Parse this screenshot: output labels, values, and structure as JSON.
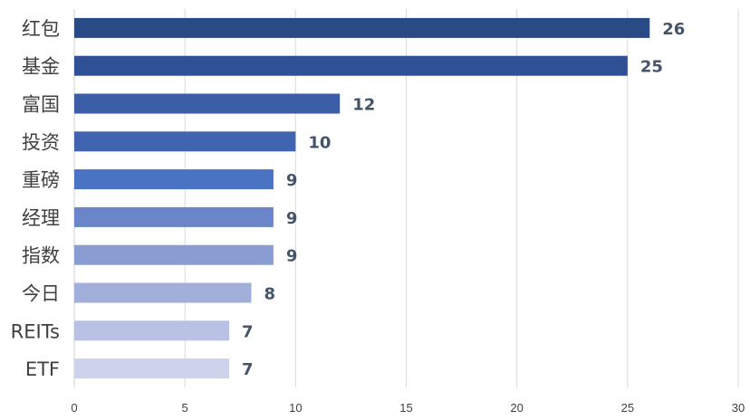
{
  "chart_data": {
    "type": "bar",
    "orientation": "horizontal",
    "title": "",
    "xlabel": "",
    "ylabel": "",
    "categories": [
      "红包",
      "基金",
      "富国",
      "投资",
      "重磅",
      "经理",
      "指数",
      "今日",
      "REITs",
      "ETF"
    ],
    "values": [
      26,
      25,
      12,
      10,
      9,
      9,
      9,
      8,
      7,
      7
    ],
    "xlim": [
      0,
      30
    ],
    "xticks": [
      0,
      5,
      10,
      15,
      20,
      25,
      30
    ],
    "bar_colors": [
      "#2a4a85",
      "#2f5094",
      "#3b5ea6",
      "#4064b0",
      "#4a73c3",
      "#6a86c9",
      "#8a9dd3",
      "#a2afdb",
      "#b9c2e4",
      "#cdd3ea"
    ],
    "grid": true,
    "legend": "none",
    "data_labels": true
  }
}
